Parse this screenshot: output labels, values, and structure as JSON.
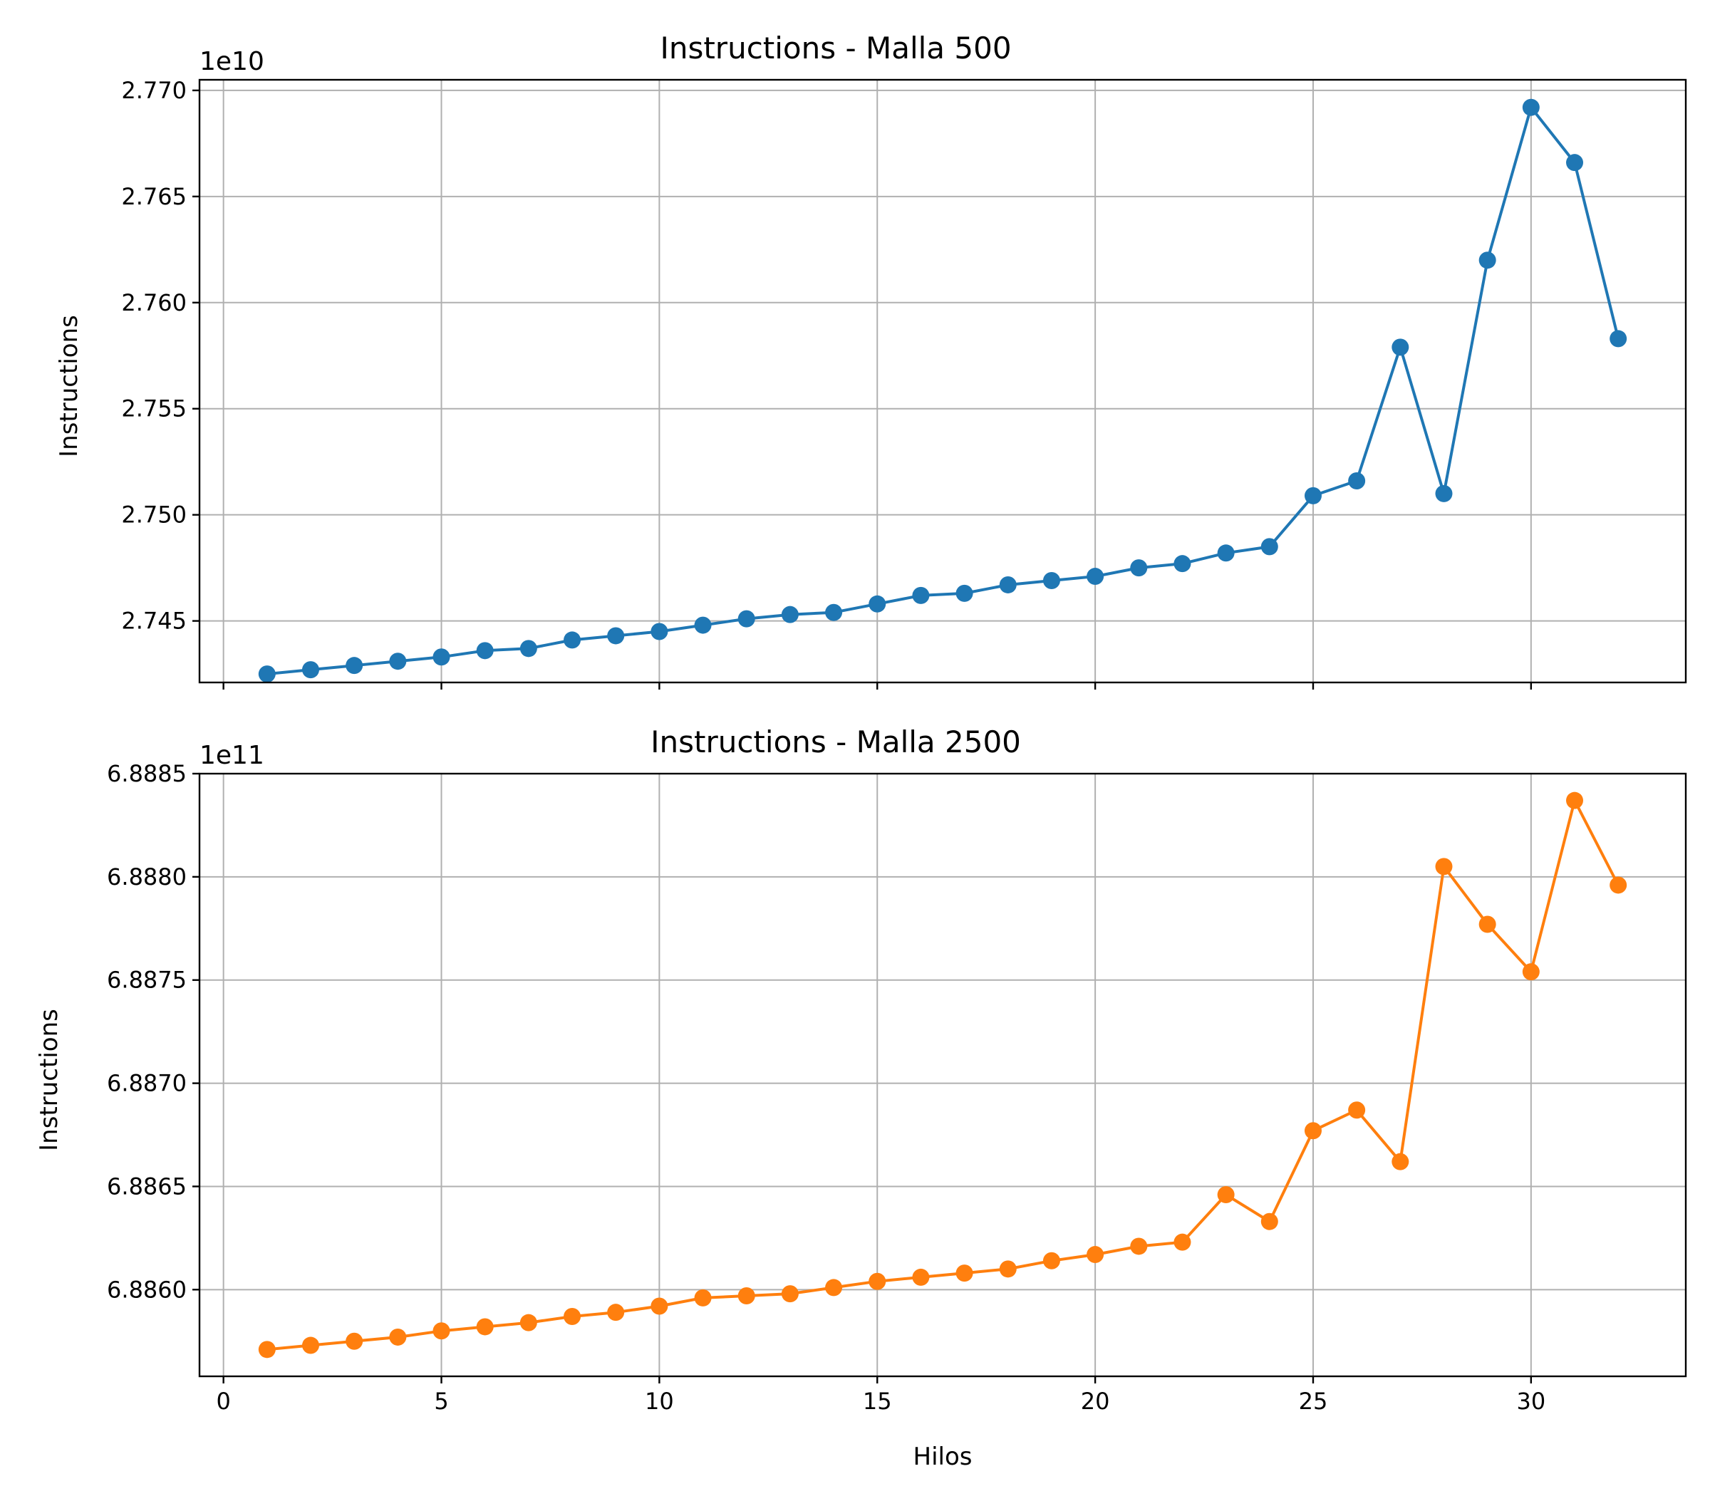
{
  "chart_data": [
    {
      "type": "line",
      "title": "Instructions - Malla 500",
      "xlabel": "",
      "ylabel": "Instructions",
      "y_offset_label": "1e10",
      "y_multiplier": 10000000000.0,
      "xlim": [
        -0.55,
        33.55
      ],
      "ylim": [
        2.7421,
        2.7705
      ],
      "xticks": [
        0,
        5,
        10,
        15,
        20,
        25,
        30
      ],
      "xtick_labels": [],
      "yticks": [
        2.745,
        2.75,
        2.755,
        2.76,
        2.765,
        2.77
      ],
      "ytick_labels": [
        "2.745",
        "2.750",
        "2.755",
        "2.760",
        "2.765",
        "2.770"
      ],
      "grid": true,
      "x": [
        1,
        2,
        3,
        4,
        5,
        6,
        7,
        8,
        9,
        10,
        11,
        12,
        13,
        14,
        15,
        16,
        17,
        18,
        19,
        20,
        21,
        22,
        23,
        24,
        25,
        26,
        27,
        28,
        29,
        30,
        31,
        32
      ],
      "series": [
        {
          "color": "#1f77b4",
          "values": [
            2.7425,
            2.7427,
            2.7429,
            2.7431,
            2.7433,
            2.7436,
            2.7437,
            2.7441,
            2.7443,
            2.7445,
            2.7448,
            2.7451,
            2.7453,
            2.7454,
            2.7458,
            2.7462,
            2.7463,
            2.7467,
            2.7469,
            2.7471,
            2.7475,
            2.7477,
            2.7482,
            2.7485,
            2.7509,
            2.7516,
            2.7579,
            2.751,
            2.762,
            2.7692,
            2.7666,
            2.7583
          ]
        }
      ]
    },
    {
      "type": "line",
      "title": "Instructions - Malla 2500",
      "xlabel": "Hilos",
      "ylabel": "Instructions",
      "y_offset_label": "1e11",
      "y_multiplier": 100000000000.0,
      "xlim": [
        -0.55,
        33.55
      ],
      "ylim": [
        6.88558,
        6.8885
      ],
      "xticks": [
        0,
        5,
        10,
        15,
        20,
        25,
        30
      ],
      "xtick_labels": [
        "0",
        "5",
        "10",
        "15",
        "20",
        "25",
        "30"
      ],
      "yticks": [
        6.886,
        6.8865,
        6.887,
        6.8875,
        6.888,
        6.8885
      ],
      "ytick_labels": [
        "6.8860",
        "6.8865",
        "6.8870",
        "6.8875",
        "6.8880",
        "6.8885"
      ],
      "grid": true,
      "x": [
        1,
        2,
        3,
        4,
        5,
        6,
        7,
        8,
        9,
        10,
        11,
        12,
        13,
        14,
        15,
        16,
        17,
        18,
        19,
        20,
        21,
        22,
        23,
        24,
        25,
        26,
        27,
        28,
        29,
        30,
        31,
        32
      ],
      "series": [
        {
          "color": "#ff7f0e",
          "values": [
            6.88571,
            6.88573,
            6.88575,
            6.88577,
            6.8858,
            6.88582,
            6.88584,
            6.88587,
            6.88589,
            6.88592,
            6.88596,
            6.88597,
            6.88598,
            6.88601,
            6.88604,
            6.88606,
            6.88608,
            6.8861,
            6.88614,
            6.88617,
            6.88621,
            6.88623,
            6.88646,
            6.88633,
            6.88677,
            6.88687,
            6.88662,
            6.88805,
            6.88777,
            6.88754,
            6.88837,
            6.88796
          ]
        }
      ]
    }
  ]
}
